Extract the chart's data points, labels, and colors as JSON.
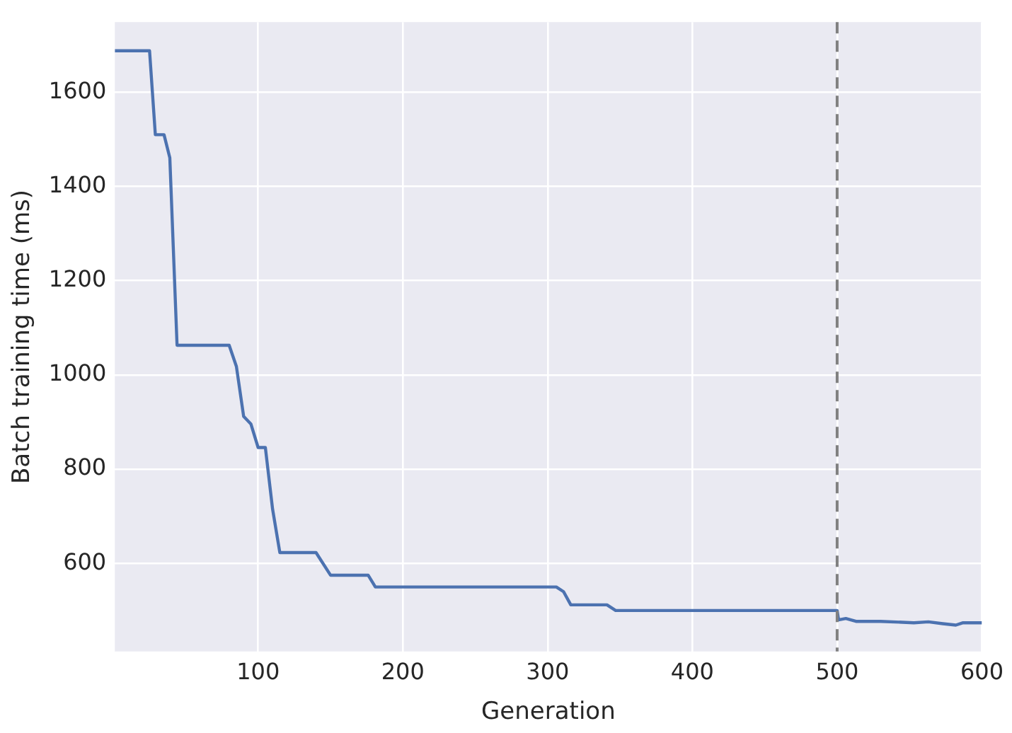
{
  "chart_data": {
    "type": "line",
    "xlabel": "Generation",
    "ylabel": "Batch training time (ms)",
    "series": [
      {
        "color": "#4c72b0",
        "x": [
          1,
          25,
          29,
          35,
          39,
          44,
          80,
          85,
          90,
          95,
          100,
          105,
          110,
          115,
          140,
          150,
          176,
          181,
          306,
          311,
          316,
          341,
          347,
          500,
          501,
          506,
          513,
          530,
          553,
          563,
          573,
          582,
          587,
          600
        ],
        "values": [
          1688,
          1688,
          1510,
          1510,
          1461,
          1063,
          1063,
          1018,
          912,
          896,
          846,
          846,
          715,
          623,
          623,
          575,
          575,
          550,
          550,
          540,
          512,
          512,
          500,
          500,
          480,
          483,
          477,
          477,
          474,
          476,
          472,
          469,
          474,
          474
        ]
      }
    ],
    "xlim": [
      1,
      600
    ],
    "xticks": [
      100,
      200,
      300,
      400,
      500,
      600
    ],
    "ylim": [
      413,
      1749
    ],
    "yticks": [
      600,
      800,
      1000,
      1200,
      1400,
      1600
    ],
    "grid": true,
    "legend": false,
    "marker": "none",
    "line_style": "solid",
    "ref_lines": [
      {
        "axis": "x",
        "value": 500,
        "color": "#808080",
        "line_style": "dashed"
      }
    ]
  }
}
